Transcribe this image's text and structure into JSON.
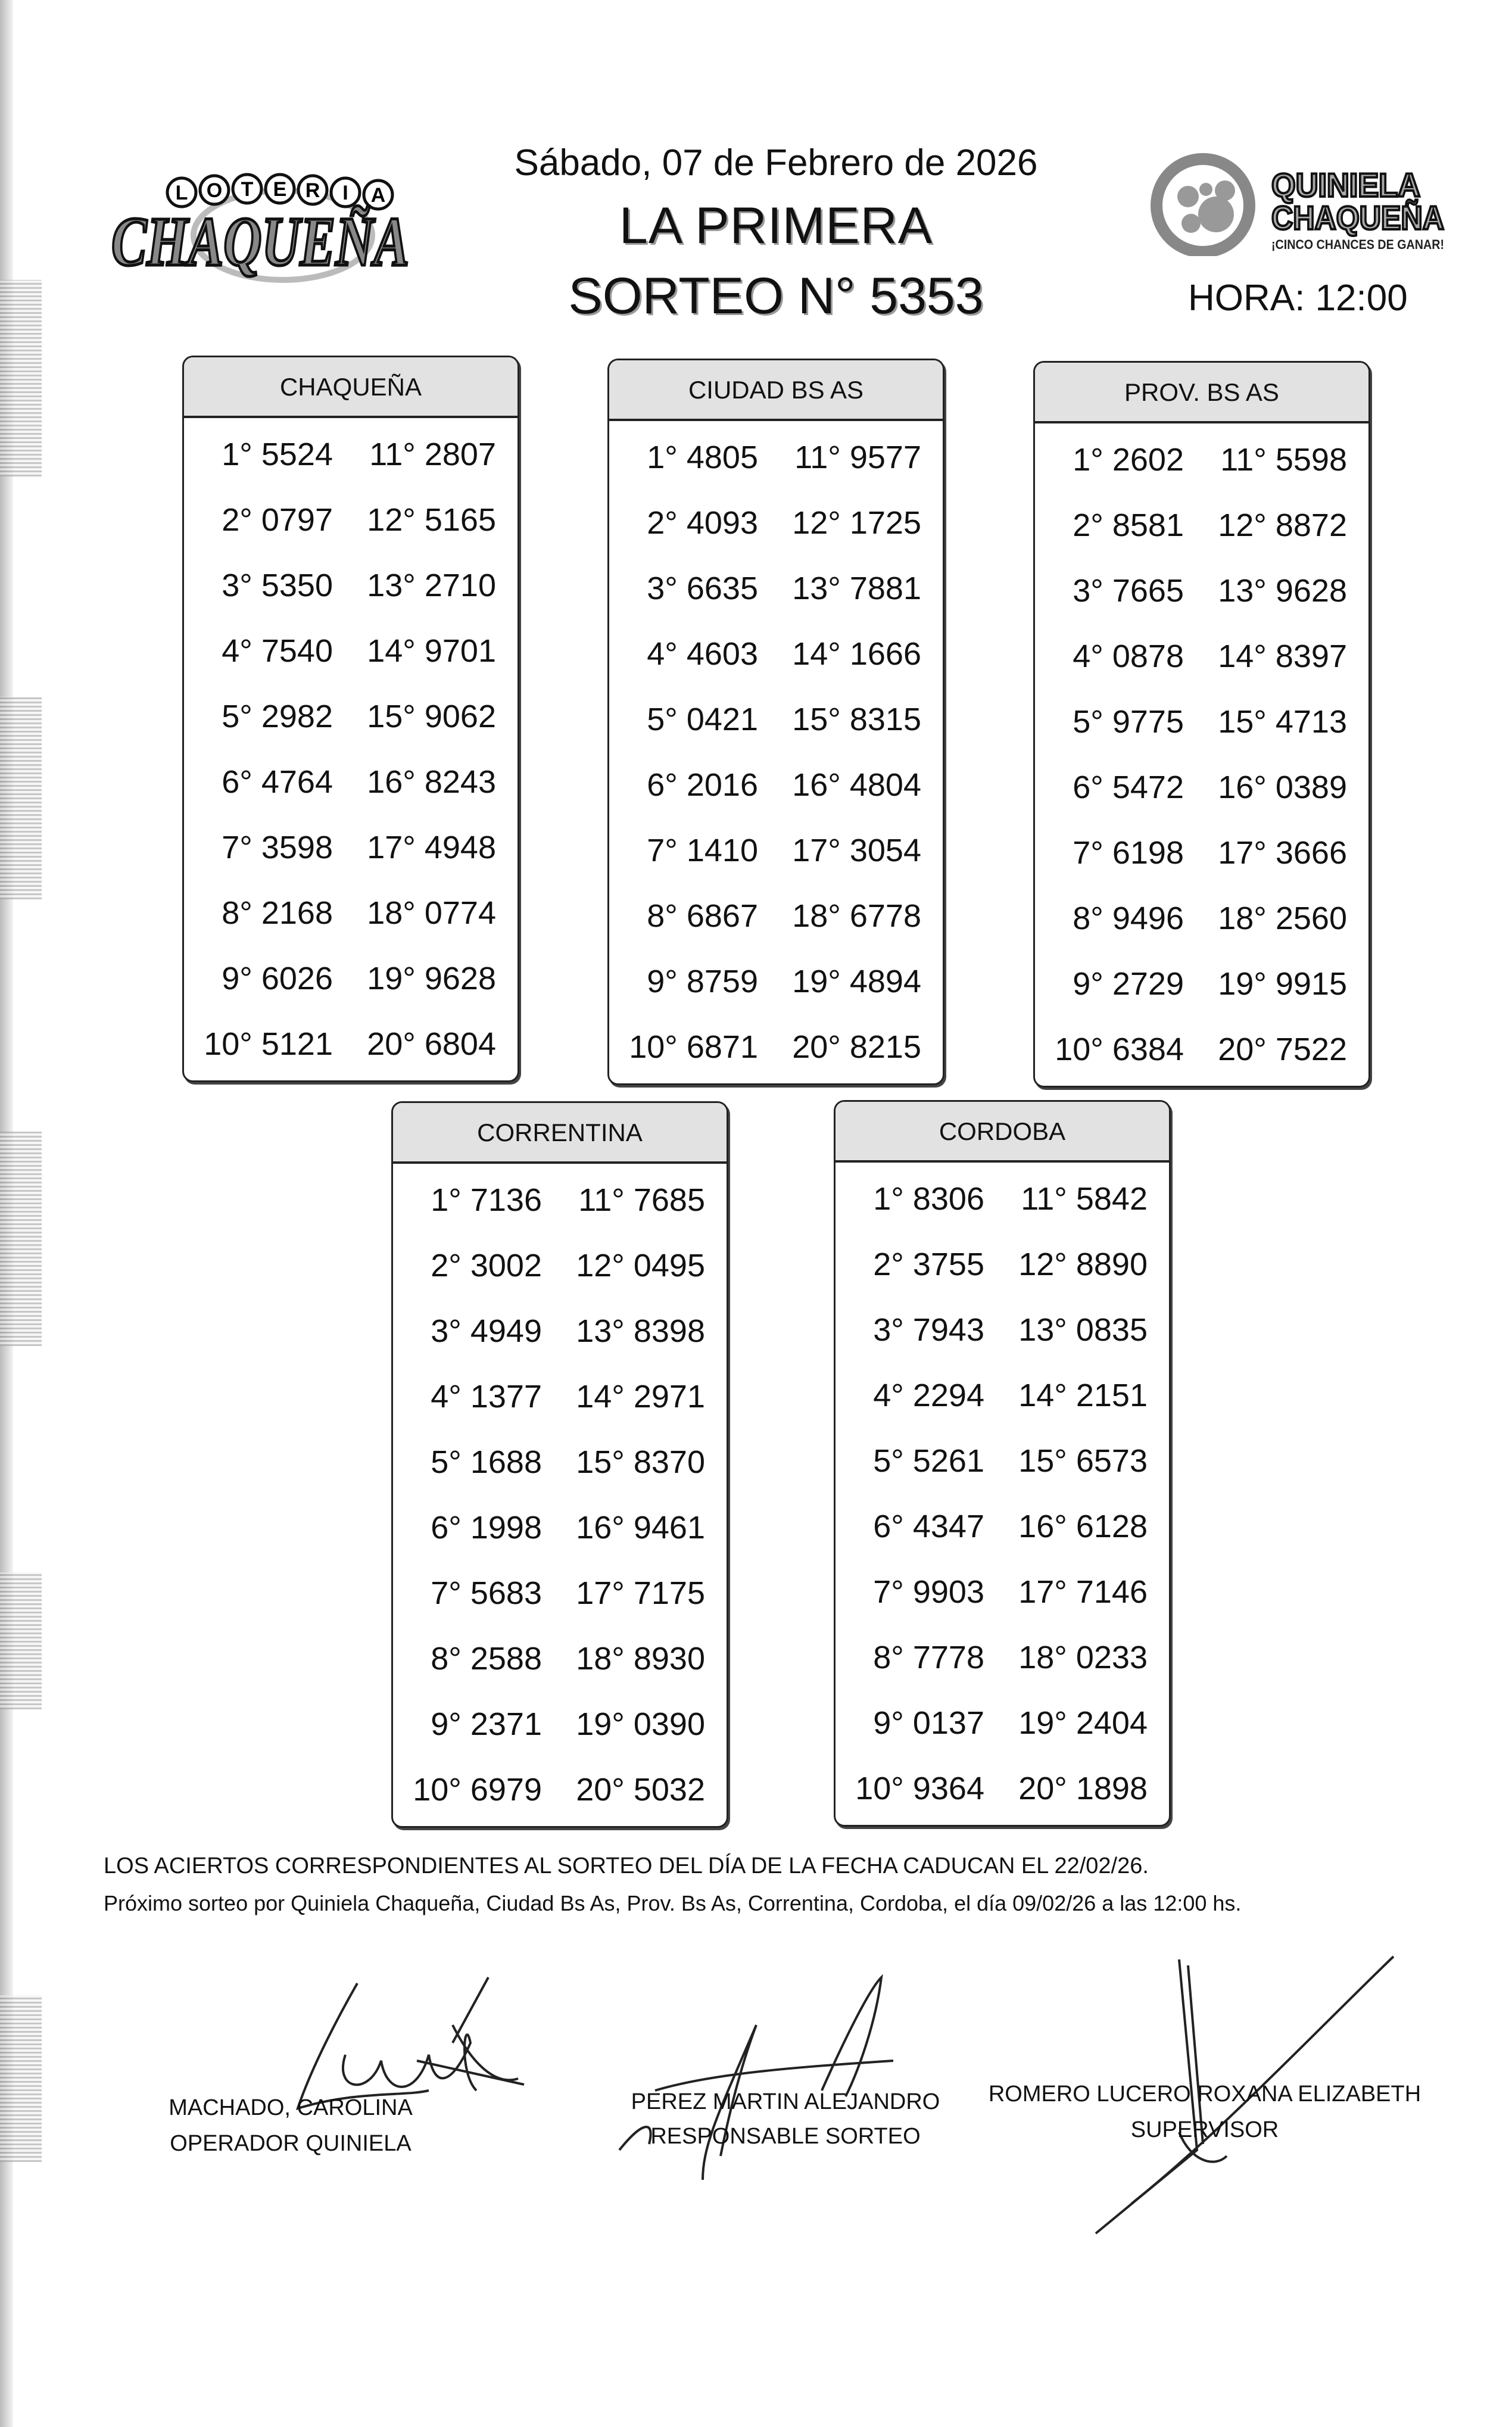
{
  "header": {
    "date": "Sábado, 07 de Febrero de 2026",
    "title": "LA PRIMERA",
    "sorteo": "SORTEO N° 5353",
    "hora": "HORA: 12:00"
  },
  "logos": {
    "left": {
      "top_text": "LOTERIA",
      "main_text": "CHAQUEÑA"
    },
    "right": {
      "line1": "QUINIELA",
      "line2": "CHAQUEÑA",
      "tagline": "¡CINCO CHANCES DE GANAR!"
    }
  },
  "tables": [
    {
      "name": "CHAQUEÑA",
      "left": [
        "1° 5524",
        "2° 0797",
        "3° 5350",
        "4° 7540",
        "5° 2982",
        "6° 4764",
        "7° 3598",
        "8° 2168",
        "9° 6026",
        "10° 5121"
      ],
      "right": [
        "11° 2807",
        "12° 5165",
        "13° 2710",
        "14° 9701",
        "15° 9062",
        "16° 8243",
        "17° 4948",
        "18° 0774",
        "19° 9628",
        "20° 6804"
      ]
    },
    {
      "name": "CIUDAD BS AS",
      "left": [
        "1° 4805",
        "2° 4093",
        "3° 6635",
        "4° 4603",
        "5° 0421",
        "6° 2016",
        "7° 1410",
        "8° 6867",
        "9° 8759",
        "10° 6871"
      ],
      "right": [
        "11° 9577",
        "12° 1725",
        "13° 7881",
        "14° 1666",
        "15° 8315",
        "16° 4804",
        "17° 3054",
        "18° 6778",
        "19° 4894",
        "20° 8215"
      ]
    },
    {
      "name": "PROV. BS AS",
      "left": [
        "1° 2602",
        "2° 8581",
        "3° 7665",
        "4° 0878",
        "5° 9775",
        "6° 5472",
        "7° 6198",
        "8° 9496",
        "9° 2729",
        "10° 6384"
      ],
      "right": [
        "11° 5598",
        "12° 8872",
        "13° 9628",
        "14° 8397",
        "15° 4713",
        "16° 0389",
        "17° 3666",
        "18° 2560",
        "19° 9915",
        "20° 7522"
      ]
    },
    {
      "name": "CORRENTINA",
      "left": [
        "1° 7136",
        "2° 3002",
        "3° 4949",
        "4° 1377",
        "5° 1688",
        "6° 1998",
        "7° 5683",
        "8° 2588",
        "9° 2371",
        "10° 6979"
      ],
      "right": [
        "11° 7685",
        "12° 0495",
        "13° 8398",
        "14° 2971",
        "15° 8370",
        "16° 9461",
        "17° 7175",
        "18° 8930",
        "19° 0390",
        "20° 5032"
      ]
    },
    {
      "name": "CORDOBA",
      "left": [
        "1° 8306",
        "2° 3755",
        "3° 7943",
        "4° 2294",
        "5° 5261",
        "6° 4347",
        "7° 9903",
        "8° 7778",
        "9° 0137",
        "10° 9364"
      ],
      "right": [
        "11° 5842",
        "12° 8890",
        "13° 0835",
        "14° 2151",
        "15° 6573",
        "16° 6128",
        "17° 7146",
        "18° 0233",
        "19° 2404",
        "20° 1898"
      ]
    }
  ],
  "footer": {
    "expiry": "LOS ACIERTOS CORRESPONDIENTES AL SORTEO DEL DÍA DE LA FECHA CADUCAN EL 22/02/26.",
    "next": "Próximo sorteo por Quiniela Chaqueña, Ciudad Bs As, Prov. Bs As, Correntina, Cordoba,  el día 09/02/26 a las 12:00 hs."
  },
  "signatures": [
    {
      "name": "MACHADO, CAROLINA",
      "role": "OPERADOR QUINIELA"
    },
    {
      "name": "PEREZ MARTIN ALEJANDRO",
      "role": "RESPONSABLE SORTEO"
    },
    {
      "name": "ROMERO LUCERO ROXANA ELIZABETH",
      "role": "SUPERVISOR"
    }
  ]
}
